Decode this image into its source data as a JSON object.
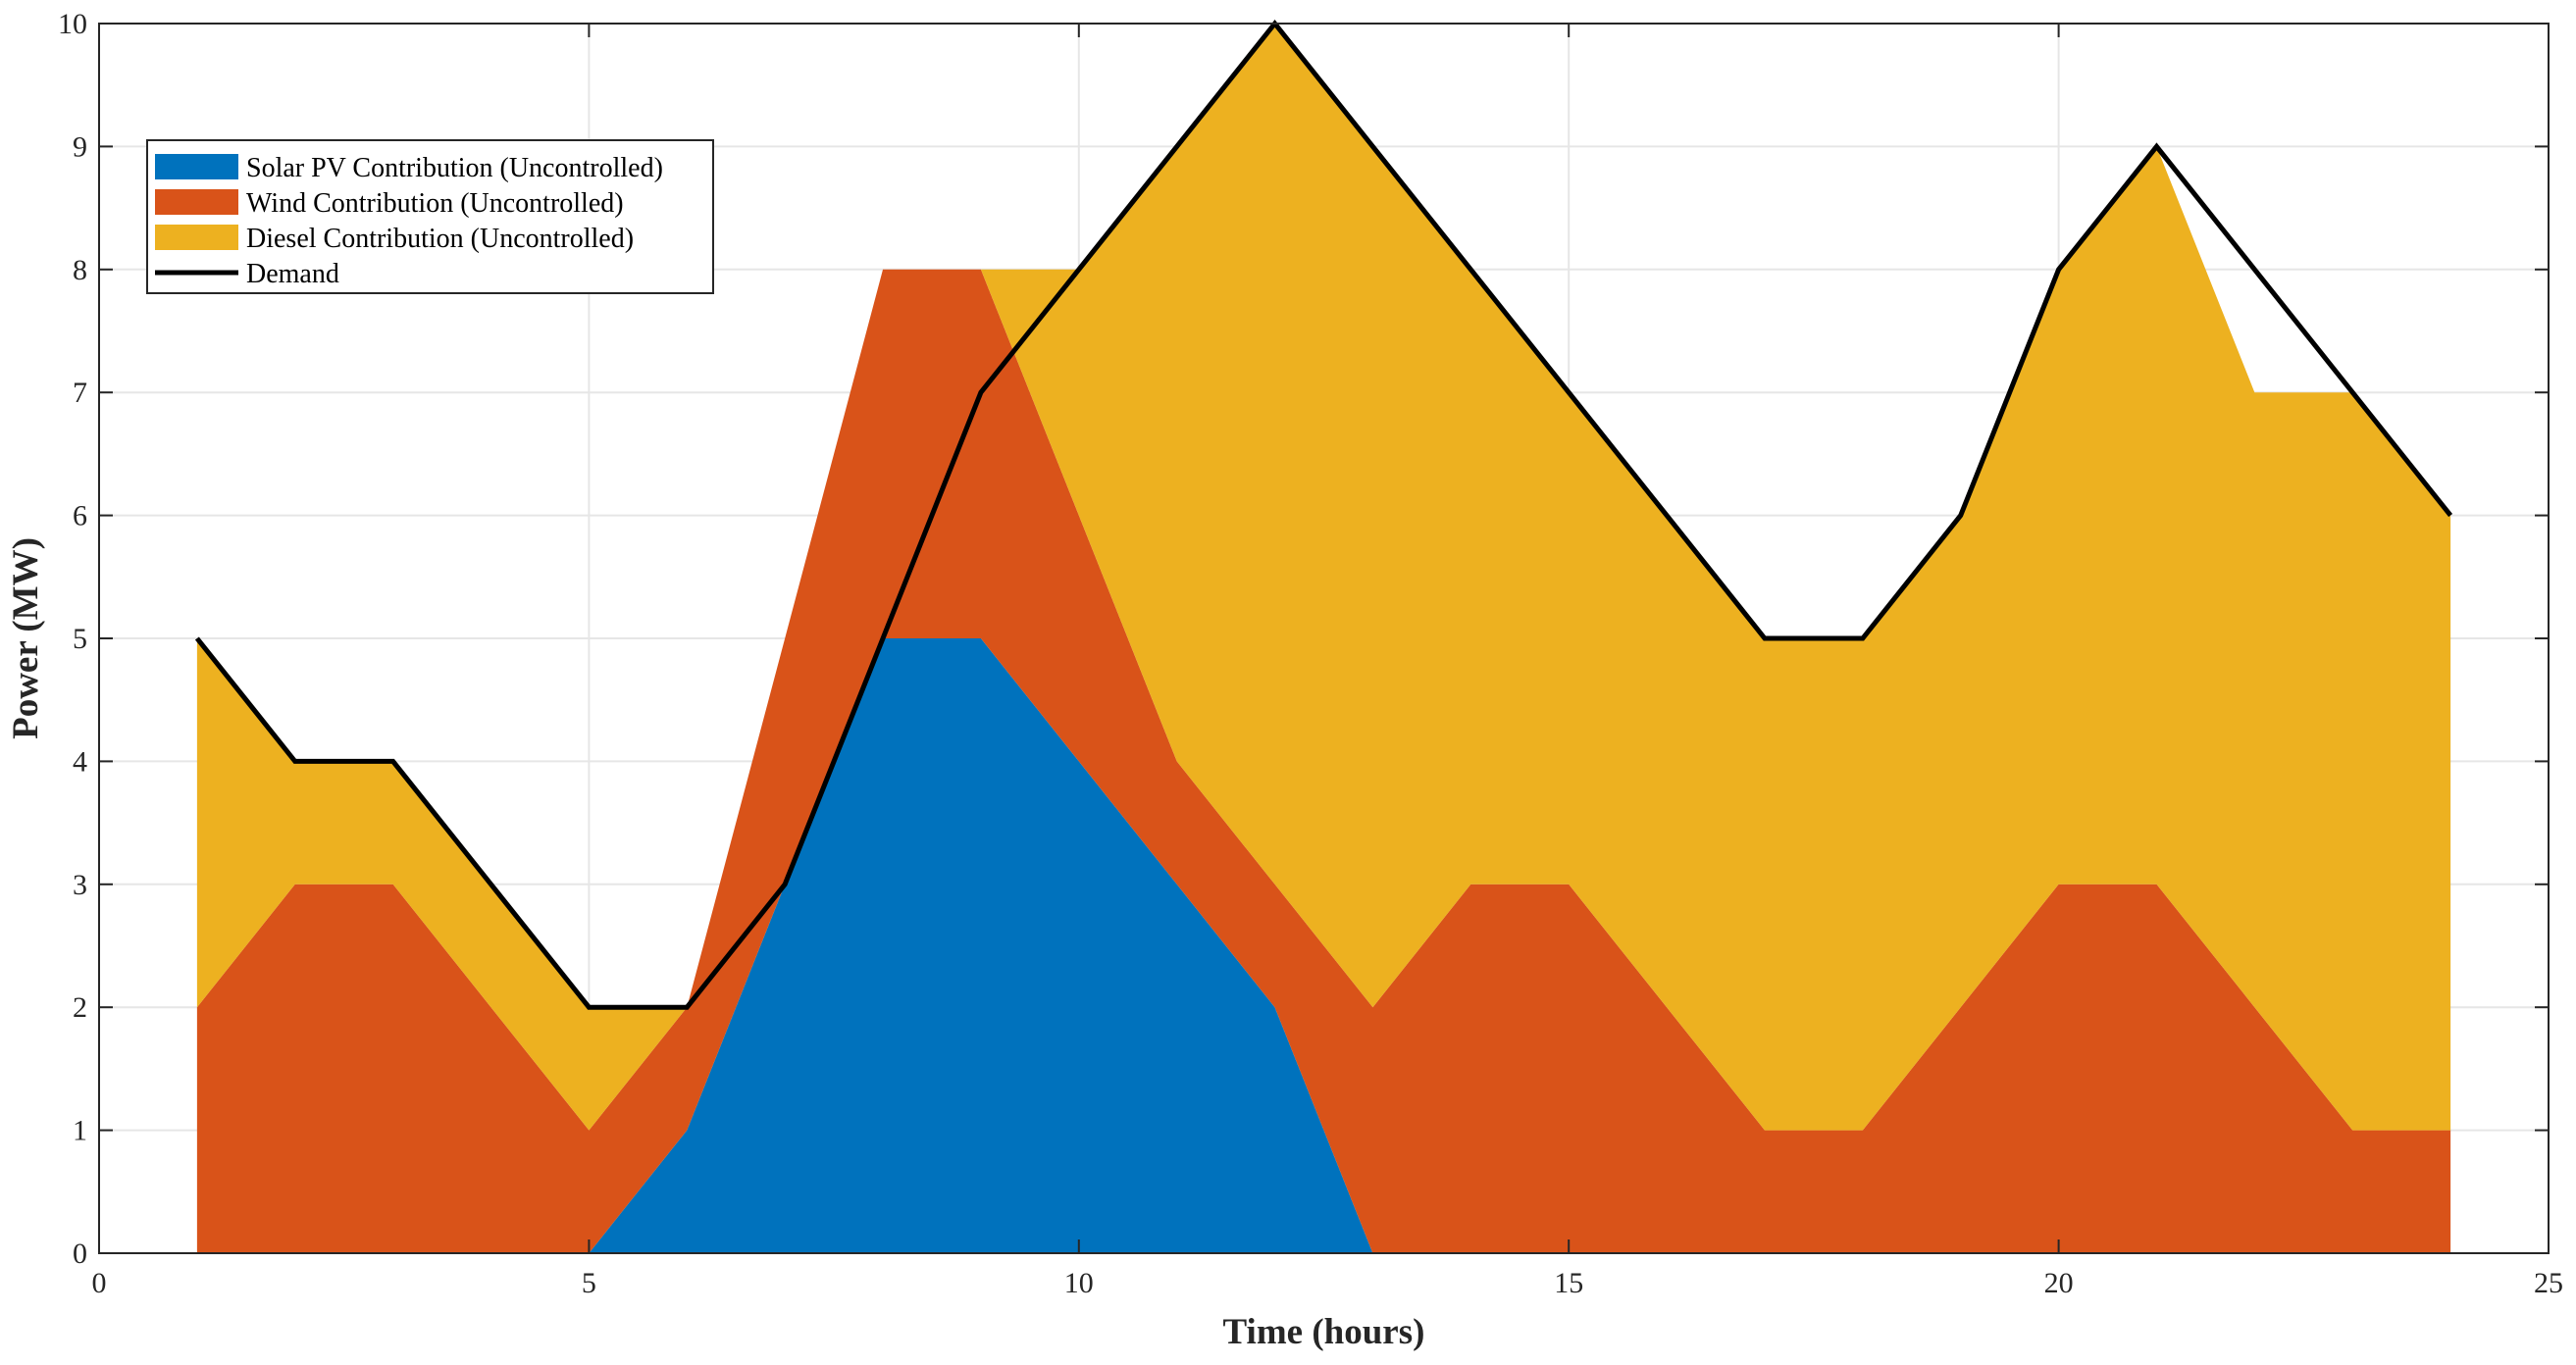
{
  "chart_data": {
    "type": "area",
    "stacked": true,
    "title": "",
    "xlabel": "Time (hours)",
    "ylabel": "Power (MW)",
    "xlim": [
      0,
      25
    ],
    "ylim": [
      0,
      10
    ],
    "xticks": [
      0,
      5,
      10,
      15,
      20,
      25
    ],
    "yticks": [
      0,
      1,
      2,
      3,
      4,
      5,
      6,
      7,
      8,
      9,
      10
    ],
    "grid": true,
    "legend_position": "top-left",
    "x": [
      1,
      2,
      3,
      4,
      5,
      6,
      7,
      8,
      9,
      10,
      11,
      12,
      13,
      14,
      15,
      16,
      17,
      18,
      19,
      20,
      21,
      22,
      23,
      24
    ],
    "series": [
      {
        "name": "Solar PV Contribution (Uncontrolled)",
        "kind": "area",
        "color": "#0072BD",
        "values": [
          0,
          0,
          0,
          0,
          0,
          1,
          3,
          5,
          5,
          4,
          3,
          2,
          0,
          0,
          0,
          0,
          0,
          0,
          0,
          0,
          0,
          0,
          0,
          0
        ]
      },
      {
        "name": "Wind Contribution (Uncontrolled)",
        "kind": "area",
        "color": "#D95319",
        "values": [
          2,
          3,
          3,
          2,
          1,
          1,
          2,
          3,
          3,
          2,
          1,
          1,
          2,
          3,
          3,
          2,
          1,
          1,
          2,
          3,
          3,
          2,
          1,
          1
        ]
      },
      {
        "name": "Diesel Contribution (Uncontrolled)",
        "kind": "area",
        "color": "#EDB120",
        "values": [
          3,
          1,
          1,
          1,
          1,
          0,
          0,
          0,
          0,
          2,
          5,
          7,
          7,
          5,
          4,
          4,
          4,
          4,
          4,
          5,
          6,
          5,
          6,
          5
        ]
      },
      {
        "name": "Demand",
        "kind": "line",
        "color": "#000000",
        "values": [
          5,
          4,
          4,
          3,
          2,
          2,
          3,
          5,
          7,
          8,
          9,
          10,
          9,
          8,
          7,
          6,
          5,
          5,
          6,
          8,
          9,
          8,
          7,
          6
        ]
      }
    ]
  }
}
